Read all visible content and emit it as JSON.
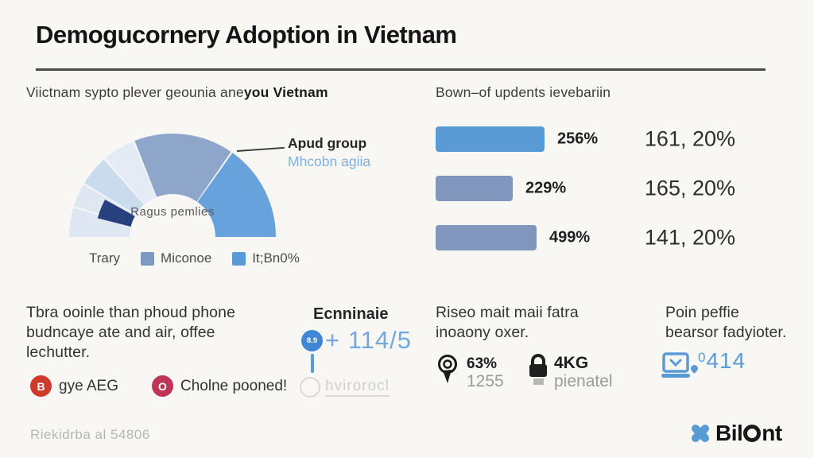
{
  "title": "Demogucornery Adoption in Vietnam",
  "left_panel": {
    "subtitle": "Viictnam sypto plever geounia ane",
    "subtitle_bold": "you Vietnam",
    "donut": {
      "center_label": "Ragus\npemlies",
      "annotation_line1": "Apud group",
      "annotation_line2": "Mhcobn agiia",
      "segments": [
        {
          "from": 180,
          "to": 163.5,
          "color": "#dfe7f3"
        },
        {
          "from": 162.5,
          "to": 149.5,
          "color": "#dfe7f3"
        },
        {
          "from": 148.5,
          "to": 131.5,
          "color": "#cbdbee"
        },
        {
          "from": 130.5,
          "to": 112.5,
          "color": "#e4ebf5"
        },
        {
          "from": 111.5,
          "to": 55.5,
          "color": "#8da6ca"
        },
        {
          "from": 54.5,
          "to": 0,
          "color": "#68a2dd"
        },
        {
          "from": 166,
          "to": 151,
          "color": "#26417d",
          "r_inner": 54,
          "r_outer": 97
        }
      ],
      "legend": [
        {
          "label": "Trary",
          "swatch": null
        },
        {
          "label": "Miconoe",
          "swatch": "#7e99c0"
        },
        {
          "label": "It;Bn0%",
          "swatch": "#5b9bd5"
        }
      ]
    }
  },
  "right_panel": {
    "subtitle": "Bown–of updents ievebariin",
    "bars": [
      {
        "pct": "256%",
        "value": "161, 20%",
        "length": 137,
        "color": "#5b9bd5"
      },
      {
        "pct": "229%",
        "value": "165, 20%",
        "length": 97,
        "color": "#8096bd"
      },
      {
        "pct": "499%",
        "value": "141, 20%",
        "length": 127,
        "color": "#8096bd"
      }
    ]
  },
  "bottom": {
    "col1": {
      "text": "Tbra ooinle than phoud phone\nbudncaye ate and air, offee\nlechutter.",
      "items": [
        {
          "glyph": "B",
          "label": "gye AEG",
          "color": "#cf3a2a"
        },
        {
          "glyph": "O",
          "label": "Cholne pooned!",
          "color": "#bf3558"
        }
      ]
    },
    "col2": {
      "heading": "Ecnninaie",
      "badge": "8.9",
      "big_value": "+ 114/5",
      "watermark": "hvirorocl"
    },
    "col3": {
      "text": "Riseo mait maii fatra\ninoaony oxer.",
      "stats": [
        {
          "icon": "map-pin",
          "value": "63%",
          "sub": "1255"
        },
        {
          "icon": "padlock",
          "value": "4KG",
          "sub": "pienatel"
        }
      ]
    },
    "col4": {
      "text": "Poin peffie\nbearsor fadyioter.",
      "icon": "laptop",
      "value_sup": "0",
      "value_main": "414"
    }
  },
  "footer": {
    "note": "Riekidrba al 54806",
    "brand_pre": "Bil",
    "brand_post": "nt",
    "brand_color": "#5b9bd5"
  },
  "chart_data": [
    {
      "type": "pie",
      "variant": "half-donut",
      "center_label": "Ragus pemlies",
      "annotation": "Apud group — Mhcobn agiia",
      "legend": [
        "Trary",
        "Miconoe",
        "It;Bn0%"
      ],
      "legend_position": "bottom",
      "slices": [
        {
          "label": "light-1",
          "share_pct": 9,
          "color": "#dfe7f3"
        },
        {
          "label": "light-2",
          "share_pct": 8,
          "color": "#dfe7f3"
        },
        {
          "label": "navy-inset",
          "share_pct": 8,
          "color": "#26417d"
        },
        {
          "label": "light-3",
          "share_pct": 10,
          "color": "#cbdbee"
        },
        {
          "label": "light-4",
          "share_pct": 10,
          "color": "#e4ebf5"
        },
        {
          "label": "Miconoe",
          "share_pct": 31,
          "color": "#8da6ca"
        },
        {
          "label": "It;Bn0%",
          "share_pct": 30,
          "color": "#68a2dd"
        }
      ]
    },
    {
      "type": "bar",
      "orientation": "horizontal",
      "title": "Bown–of updents ievebariin",
      "categories": [
        "256%",
        "229%",
        "499%"
      ],
      "values": [
        137,
        97,
        127
      ],
      "value_unit": "relative-bar-length-px",
      "annotations": [
        "161, 20%",
        "165, 20%",
        "141, 20%"
      ],
      "colors": [
        "#5b9bd5",
        "#8096bd",
        "#8096bd"
      ],
      "grid": false
    }
  ]
}
